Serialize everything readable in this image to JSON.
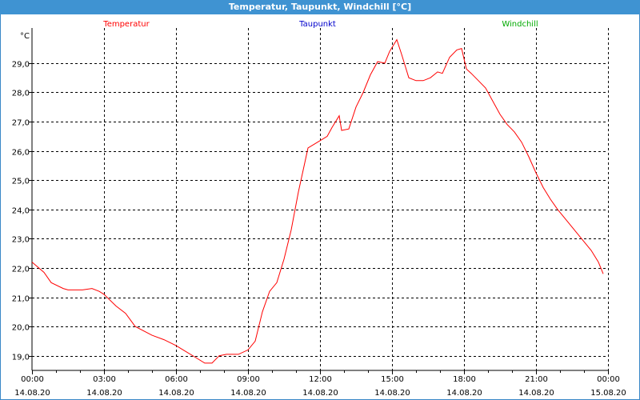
{
  "window": {
    "title": "Temperatur, Taupunkt, Windchill [°C]"
  },
  "chart_data": {
    "type": "line",
    "title": "Temperatur, Taupunkt, Windchill [°C]",
    "ylabel": "°C",
    "xlabel": "",
    "ylim": [
      18.5,
      30.2
    ],
    "xlim_hours": [
      0,
      24
    ],
    "grid": true,
    "legend": [
      {
        "name": "Temperatur",
        "color": "#ff0000"
      },
      {
        "name": "Taupunkt",
        "color": "#0000cc"
      },
      {
        "name": "Windchill",
        "color": "#00aa00"
      }
    ],
    "y_ticks": [
      "19,0",
      "20,0",
      "21,0",
      "22,0",
      "23,0",
      "24,0",
      "25,0",
      "26,0",
      "27,0",
      "28,0",
      "29,0"
    ],
    "y_tick_values": [
      19,
      20,
      21,
      22,
      23,
      24,
      25,
      26,
      27,
      28,
      29
    ],
    "x_ticks": [
      {
        "time": "00:00",
        "date": "14.08.20",
        "hour": 0
      },
      {
        "time": "03:00",
        "date": "14.08.20",
        "hour": 3
      },
      {
        "time": "06:00",
        "date": "14.08.20",
        "hour": 6
      },
      {
        "time": "09:00",
        "date": "14.08.20",
        "hour": 9
      },
      {
        "time": "12:00",
        "date": "14.08.20",
        "hour": 12
      },
      {
        "time": "15:00",
        "date": "14.08.20",
        "hour": 15
      },
      {
        "time": "18:00",
        "date": "14.08.20",
        "hour": 18
      },
      {
        "time": "21:00",
        "date": "14.08.20",
        "hour": 21
      },
      {
        "time": "00:00",
        "date": "15.08.20",
        "hour": 24
      }
    ],
    "series": [
      {
        "name": "Temperatur",
        "color": "#ff0000",
        "x": [
          0,
          0.5,
          0.8,
          1.3,
          1.5,
          2.1,
          2.5,
          2.8,
          3.0,
          3.5,
          3.9,
          4.3,
          5.0,
          5.5,
          6.0,
          6.3,
          6.8,
          7.2,
          7.5,
          7.8,
          8.1,
          8.6,
          9.0,
          9.3,
          9.6,
          9.9,
          10.2,
          10.5,
          10.8,
          11.1,
          11.5,
          11.9,
          12.3,
          12.5,
          12.8,
          12.9,
          13.2,
          13.5,
          13.8,
          14.1,
          14.4,
          14.7,
          14.9,
          15.2,
          15.4,
          15.7,
          16.0,
          16.3,
          16.6,
          16.9,
          17.1,
          17.4,
          17.7,
          17.9,
          18.1,
          18.3,
          18.6,
          18.9,
          19.2,
          19.5,
          19.8,
          20.1,
          20.4,
          20.7,
          21.0,
          21.3,
          21.6,
          21.9,
          22.3,
          22.6,
          22.9,
          23.3,
          23.6,
          23.8
        ],
        "values": [
          22.2,
          21.85,
          21.5,
          21.3,
          21.25,
          21.25,
          21.3,
          21.2,
          21.1,
          20.7,
          20.45,
          20.0,
          19.7,
          19.55,
          19.35,
          19.2,
          18.95,
          18.75,
          18.75,
          19.0,
          19.05,
          19.05,
          19.2,
          19.5,
          20.5,
          21.2,
          21.5,
          22.3,
          23.3,
          24.6,
          26.1,
          26.3,
          26.5,
          26.8,
          27.2,
          26.7,
          26.75,
          27.5,
          28.0,
          28.6,
          29.05,
          29.0,
          29.4,
          29.8,
          29.3,
          28.5,
          28.4,
          28.4,
          28.5,
          28.7,
          28.65,
          29.2,
          29.45,
          29.5,
          28.8,
          28.65,
          28.4,
          28.15,
          27.7,
          27.25,
          26.9,
          26.65,
          26.3,
          25.8,
          25.25,
          24.75,
          24.35,
          24.0,
          23.6,
          23.3,
          23.0,
          22.6,
          22.2,
          21.8
        ]
      }
    ]
  }
}
